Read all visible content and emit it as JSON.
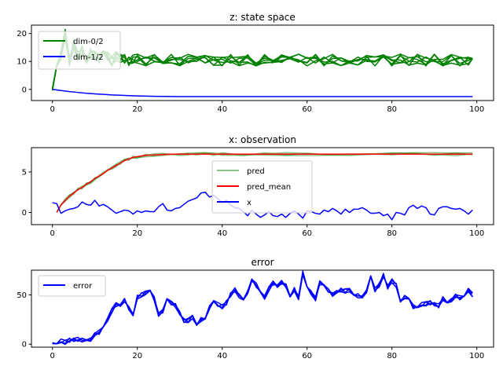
{
  "chart_data": [
    {
      "type": "line",
      "title": "z: state space",
      "xlabel": "",
      "ylabel": "",
      "xlim": [
        -4.95,
        103.95
      ],
      "ylim": [
        -4,
        23
      ],
      "xticks": [
        0,
        20,
        40,
        60,
        80,
        100
      ],
      "yticks": [
        0,
        10,
        20
      ],
      "legend": "upper left",
      "series": [
        {
          "name": "dim-0/2",
          "color": "#008000",
          "bundle": 6,
          "x": [
            0,
            1,
            2,
            3,
            4,
            5,
            6,
            7,
            8,
            9,
            10,
            11,
            12,
            13,
            14,
            15,
            16,
            17,
            18,
            19,
            20,
            22,
            24,
            26,
            28,
            30,
            32,
            34,
            36,
            38,
            40,
            42,
            44,
            46,
            48,
            50,
            52,
            54,
            56,
            58,
            60,
            62,
            64,
            66,
            68,
            70,
            72,
            74,
            76,
            78,
            80,
            82,
            84,
            86,
            88,
            90,
            92,
            94,
            96,
            98,
            99
          ],
          "values": [
            0,
            8,
            12,
            20,
            10,
            16,
            12,
            14,
            11,
            13,
            12,
            11,
            13,
            12,
            10,
            12,
            11,
            11,
            10,
            11,
            11,
            10,
            11,
            10,
            11,
            10,
            11,
            10,
            11,
            10,
            10,
            11,
            10,
            11,
            10,
            11,
            10,
            11,
            10,
            11,
            10,
            11,
            10,
            11,
            10,
            11,
            10,
            11,
            10,
            11,
            10,
            11,
            10,
            11,
            10,
            11,
            10,
            11,
            10,
            10,
            11
          ]
        },
        {
          "name": "dim-1/2",
          "color": "#0000ff",
          "bundle": 1,
          "x": [
            0,
            2,
            4,
            6,
            8,
            10,
            12,
            14,
            16,
            18,
            20,
            22,
            24,
            26,
            28,
            30,
            35,
            40,
            50,
            60,
            70,
            80,
            90,
            99
          ],
          "values": [
            0,
            -0.4,
            -0.8,
            -1.1,
            -1.4,
            -1.6,
            -1.8,
            -2.0,
            -2.1,
            -2.25,
            -2.35,
            -2.42,
            -2.48,
            -2.52,
            -2.55,
            -2.58,
            -2.6,
            -2.6,
            -2.6,
            -2.6,
            -2.6,
            -2.6,
            -2.6,
            -2.6
          ]
        }
      ]
    },
    {
      "type": "line",
      "title": "x: observation",
      "xlabel": "",
      "ylabel": "",
      "xlim": [
        -4.95,
        103.95
      ],
      "ylim": [
        -1.5,
        8.0
      ],
      "xticks": [
        0,
        20,
        40,
        60,
        80,
        100
      ],
      "yticks": [
        0,
        5
      ],
      "legend": "center",
      "series": [
        {
          "name": "pred",
          "color": "#3a9b3a",
          "opacity": 0.6,
          "bundle": 3,
          "x": [
            1,
            2,
            3,
            4,
            5,
            6,
            7,
            8,
            9,
            10,
            11,
            12,
            13,
            14,
            15,
            16,
            17,
            18,
            19,
            20,
            22,
            24,
            26,
            28,
            30,
            32,
            34,
            36,
            38,
            40,
            45,
            50,
            55,
            60,
            65,
            70,
            75,
            80,
            85,
            90,
            95,
            99
          ],
          "values": [
            0.0,
            0.9,
            1.5,
            2.0,
            2.4,
            2.8,
            3.1,
            3.5,
            3.8,
            4.2,
            4.5,
            4.8,
            5.2,
            5.5,
            5.8,
            6.1,
            6.4,
            6.6,
            6.8,
            6.9,
            7.05,
            7.1,
            7.15,
            7.2,
            7.2,
            7.2,
            7.2,
            7.2,
            7.2,
            7.2,
            7.2,
            7.2,
            7.2,
            7.2,
            7.2,
            7.2,
            7.2,
            7.2,
            7.2,
            7.2,
            7.2,
            7.3
          ]
        },
        {
          "name": "pred_mean",
          "color": "#ff0000",
          "bundle": 1,
          "x": [
            1,
            2,
            3,
            4,
            5,
            6,
            7,
            8,
            9,
            10,
            11,
            12,
            13,
            14,
            15,
            16,
            17,
            18,
            19,
            20,
            22,
            24,
            26,
            28,
            30,
            32,
            34,
            36,
            38,
            40,
            45,
            50,
            55,
            60,
            65,
            70,
            75,
            80,
            85,
            90,
            95,
            99
          ],
          "values": [
            0.0,
            0.9,
            1.5,
            2.0,
            2.4,
            2.8,
            3.1,
            3.5,
            3.8,
            4.2,
            4.5,
            4.8,
            5.2,
            5.5,
            5.8,
            6.1,
            6.4,
            6.6,
            6.8,
            6.9,
            7.05,
            7.1,
            7.15,
            7.2,
            7.2,
            7.2,
            7.2,
            7.2,
            7.2,
            7.2,
            7.2,
            7.2,
            7.2,
            7.2,
            7.2,
            7.2,
            7.2,
            7.2,
            7.2,
            7.2,
            7.2,
            7.2
          ]
        },
        {
          "name": "x",
          "color": "#0000ff",
          "bundle": 1,
          "x": [
            0,
            1,
            2,
            3,
            4,
            5,
            6,
            7,
            8,
            9,
            10,
            11,
            12,
            13,
            14,
            15,
            16,
            17,
            18,
            19,
            20,
            21,
            22,
            23,
            24,
            25,
            26,
            27,
            28,
            29,
            30,
            31,
            32,
            33,
            34,
            35,
            36,
            37,
            38,
            39,
            40,
            41,
            42,
            43,
            44,
            45,
            46,
            47,
            48,
            49,
            50,
            51,
            52,
            53,
            54,
            55,
            56,
            57,
            58,
            59,
            60,
            61,
            62,
            63,
            64,
            65,
            66,
            67,
            68,
            69,
            70,
            71,
            72,
            73,
            74,
            75,
            76,
            77,
            78,
            79,
            80,
            81,
            82,
            83,
            84,
            85,
            86,
            87,
            88,
            89,
            90,
            91,
            92,
            93,
            94,
            95,
            96,
            97,
            98,
            99
          ],
          "values": [
            1.2,
            1.1,
            -0.1,
            0.2,
            0.4,
            0.5,
            0.7,
            1.3,
            1.0,
            0.9,
            1.5,
            0.8,
            1.0,
            0.7,
            0.3,
            -0.1,
            0.1,
            0.3,
            0.2,
            -0.2,
            0.2,
            0.0,
            0.2,
            0.1,
            0.1,
            0.7,
            1.1,
            0.3,
            0.2,
            0.5,
            0.6,
            1.0,
            1.4,
            1.6,
            1.8,
            2.4,
            2.5,
            1.9,
            2.1,
            1.7,
            1.2,
            1.5,
            0.9,
            0.6,
            0.5,
            0.1,
            -0.4,
            0.3,
            -0.2,
            -0.6,
            -0.3,
            0.1,
            -0.4,
            -0.5,
            -0.2,
            -0.6,
            -0.1,
            0.2,
            -0.2,
            -0.7,
            0.2,
            0.1,
            -0.1,
            -0.2,
            0.3,
            0.1,
            0.5,
            0.2,
            -0.2,
            0.4,
            0.0,
            0.4,
            0.4,
            0.6,
            0.3,
            -0.1,
            -0.1,
            0.0,
            -0.4,
            -0.2,
            -0.9,
            0.0,
            -0.1,
            -0.3,
            0.6,
            0.9,
            0.5,
            0.8,
            0.6,
            -0.2,
            -0.3,
            0.5,
            0.7,
            0.7,
            0.5,
            0.4,
            0.5,
            0.2,
            -0.2,
            0.3
          ]
        }
      ]
    },
    {
      "type": "line",
      "title": "error",
      "xlabel": "",
      "ylabel": "",
      "xlim": [
        -4.95,
        103.95
      ],
      "ylim": [
        -3,
        75
      ],
      "xticks": [
        0,
        20,
        40,
        60,
        80,
        100
      ],
      "yticks": [
        0,
        50
      ],
      "legend": "upper left",
      "series": [
        {
          "name": "error",
          "color": "#0000ff",
          "bundle": 4,
          "x": [
            0,
            1,
            2,
            3,
            4,
            5,
            6,
            7,
            8,
            9,
            10,
            11,
            12,
            13,
            14,
            15,
            16,
            17,
            18,
            19,
            20,
            21,
            22,
            23,
            24,
            25,
            26,
            27,
            28,
            29,
            30,
            31,
            32,
            33,
            34,
            35,
            36,
            37,
            38,
            39,
            40,
            41,
            42,
            43,
            44,
            45,
            46,
            47,
            48,
            49,
            50,
            51,
            52,
            53,
            54,
            55,
            56,
            57,
            58,
            59,
            60,
            61,
            62,
            63,
            64,
            65,
            66,
            67,
            68,
            69,
            70,
            71,
            72,
            73,
            74,
            75,
            76,
            77,
            78,
            79,
            80,
            81,
            82,
            83,
            84,
            85,
            86,
            87,
            88,
            89,
            90,
            91,
            92,
            93,
            94,
            95,
            96,
            97,
            98,
            99
          ],
          "values": [
            1,
            0,
            3,
            2,
            4,
            4,
            5,
            4,
            6,
            5,
            10,
            12,
            17,
            25,
            34,
            40,
            38,
            45,
            36,
            31,
            48,
            50,
            52,
            55,
            46,
            30,
            33,
            44,
            42,
            39,
            32,
            24,
            24,
            28,
            21,
            25,
            26,
            37,
            42,
            40,
            38,
            42,
            50,
            55,
            49,
            47,
            53,
            65,
            60,
            52,
            47,
            56,
            62,
            58,
            63,
            59,
            50,
            56,
            47,
            72,
            58,
            52,
            46,
            62,
            58,
            55,
            50,
            54,
            55,
            54,
            55,
            51,
            49,
            48,
            53,
            67,
            55,
            60,
            70,
            58,
            64,
            60,
            45,
            48,
            46,
            38,
            36,
            40,
            41,
            42,
            40,
            39,
            46,
            44,
            45,
            49,
            47,
            48,
            55,
            50
          ]
        }
      ]
    }
  ]
}
